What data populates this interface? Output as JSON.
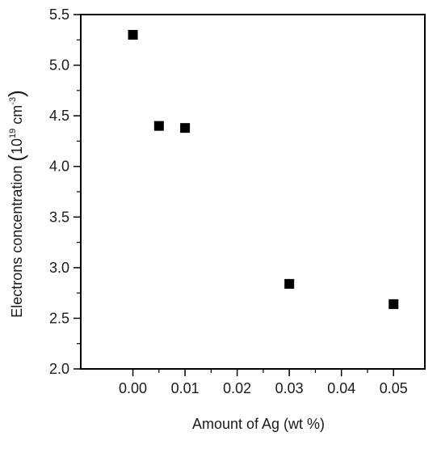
{
  "chart_data": {
    "type": "scatter",
    "title": "",
    "xlabel": "Amount of Ag (wt %)",
    "ylabel": {
      "main": "Electrons concentration ",
      "unit_base": "10",
      "unit_exp": "19",
      "unit_space": " cm",
      "unit_exp2": "-3"
    },
    "xlim": [
      -0.01,
      0.056
    ],
    "ylim": [
      2.0,
      5.5
    ],
    "x_ticks": [
      {
        "value": 0.0,
        "label": "0.00"
      },
      {
        "value": 0.01,
        "label": "0.01"
      },
      {
        "value": 0.02,
        "label": "0.02"
      },
      {
        "value": 0.03,
        "label": "0.03"
      },
      {
        "value": 0.04,
        "label": "0.04"
      },
      {
        "value": 0.05,
        "label": "0.05"
      }
    ],
    "y_ticks": [
      {
        "value": 2.0,
        "label": "2.0"
      },
      {
        "value": 2.5,
        "label": "2.5"
      },
      {
        "value": 3.0,
        "label": "3.0"
      },
      {
        "value": 3.5,
        "label": "3.5"
      },
      {
        "value": 4.0,
        "label": "4.0"
      },
      {
        "value": 4.5,
        "label": "4.5"
      },
      {
        "value": 5.0,
        "label": "5.0"
      },
      {
        "value": 5.5,
        "label": "5.5"
      }
    ],
    "series": [
      {
        "marker": "square",
        "color": "#000000",
        "x": [
          0.0,
          0.005,
          0.01,
          0.03,
          0.05
        ],
        "y": [
          5.3,
          4.4,
          4.38,
          2.84,
          2.64
        ]
      }
    ],
    "grid": false,
    "legend": "none"
  }
}
